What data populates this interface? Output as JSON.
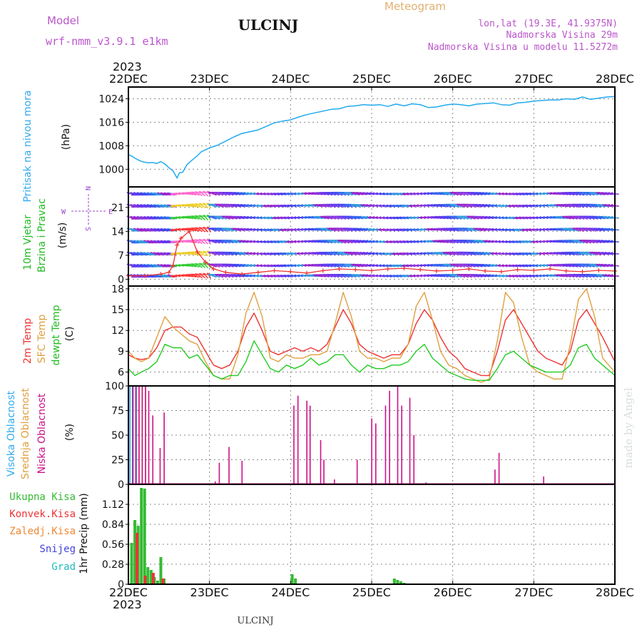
{
  "header": {
    "model_label": "Model",
    "model_name": "wrf-nmm_v3.9.1 e1km",
    "station": "ULCINJ",
    "product": "Meteogram",
    "coords": "lon,lat (19.3E, 41.9375N)",
    "elevation": "Nadmorska Visina 29m",
    "model_elevation": "Nadmorska Visina u modelu 11.5272m",
    "credit": "made by Angel",
    "footer_station": "ULCINJ"
  },
  "time_axis": {
    "year": "2023",
    "ticks": [
      "22DEC",
      "23DEC",
      "24DEC",
      "25DEC",
      "26DEC",
      "27DEC",
      "28DEC"
    ]
  },
  "colors": {
    "pressure": "#22aaee",
    "temp2m": "#ee3333",
    "sfc_temp": "#e0a040",
    "dewpoint": "#22cc22",
    "high_cloud": "#33aaee",
    "mid_cloud": "#e0a040",
    "low_cloud": "#cc1188",
    "total_precip": "#33bb33",
    "conv_precip": "#ee3333",
    "frozen_precip": "#ee8833",
    "snow": "#4444dd",
    "hail": "#22bbbb",
    "model_label": "#bb55cc",
    "product_label": "#e0b070"
  },
  "chart_data": [
    {
      "type": "line",
      "panel": "pressure",
      "ylabel": [
        "Pritisak na nivou mora",
        "(hPa)"
      ],
      "yticks": [
        1000,
        1008,
        1016,
        1024
      ],
      "ylim": [
        994,
        1028
      ],
      "x_days": [
        0.0,
        0.04,
        0.08,
        0.12,
        0.16,
        0.2,
        0.25,
        0.3,
        0.35,
        0.4,
        0.45,
        0.5,
        0.55,
        0.6,
        0.63,
        0.67,
        0.72,
        0.78,
        0.85,
        0.9,
        1.0,
        1.1,
        1.2,
        1.3,
        1.4,
        1.5,
        1.6,
        1.7,
        1.8,
        1.9,
        2.0,
        2.1,
        2.2,
        2.3,
        2.4,
        2.5,
        2.6,
        2.7,
        2.8,
        2.9,
        3.0,
        3.1,
        3.2,
        3.3,
        3.4,
        3.5,
        3.6,
        3.7,
        3.8,
        3.9,
        4.0,
        4.1,
        4.2,
        4.3,
        4.4,
        4.5,
        4.6,
        4.7,
        4.8,
        4.9,
        5.0,
        5.1,
        5.2,
        5.3,
        5.4,
        5.5,
        5.6,
        5.7,
        5.8,
        5.9,
        6.0
      ],
      "values": [
        1005,
        1004.5,
        1003.8,
        1003.2,
        1002.7,
        1002.4,
        1002.2,
        1002.3,
        1002.0,
        1002.6,
        1001.8,
        1000.5,
        999.5,
        997.0,
        998.8,
        999.0,
        1001.5,
        1003.0,
        1004.6,
        1006.0,
        1007.2,
        1008.2,
        1009.6,
        1011.0,
        1012.2,
        1012.8,
        1013.4,
        1014.6,
        1015.8,
        1016.4,
        1016.8,
        1017.8,
        1018.6,
        1019.2,
        1019.8,
        1020.4,
        1020.6,
        1021.4,
        1021.6,
        1022.0,
        1021.8,
        1022.0,
        1021.4,
        1022.2,
        1021.6,
        1022.3,
        1022.0,
        1021.0,
        1021.2,
        1021.8,
        1022.2,
        1022.0,
        1021.6,
        1022.2,
        1022.4,
        1022.6,
        1022.0,
        1021.8,
        1022.6,
        1022.8,
        1023.2,
        1023.4,
        1023.6,
        1023.6,
        1024.0,
        1023.8,
        1024.6,
        1023.8,
        1024.2,
        1024.6,
        1024.8
      ]
    },
    {
      "type": "vector",
      "panel": "wind",
      "ylabel": [
        "10m Vjetar",
        "Brzina i Pravac",
        "(m/s)"
      ],
      "compass": [
        "N",
        "E",
        "S",
        "W"
      ],
      "yticks": [
        0,
        7,
        14,
        21
      ],
      "ylim": [
        -2,
        27
      ],
      "speed_x_days": [
        0,
        0.2,
        0.4,
        0.5,
        0.55,
        0.6,
        0.65,
        0.75,
        0.85,
        0.95,
        1.05,
        1.2,
        1.4,
        1.6,
        1.8,
        2.0,
        2.2,
        2.4,
        2.6,
        2.8,
        3.0,
        3.2,
        3.4,
        3.6,
        3.8,
        4.0,
        4.2,
        4.4,
        4.6,
        4.8,
        5.0,
        5.2,
        5.4,
        5.6,
        5.8,
        6.0
      ],
      "speed_values": [
        1,
        1,
        1.5,
        2,
        4,
        10,
        12,
        14,
        8,
        5,
        3,
        2,
        1.5,
        2,
        2.5,
        2.2,
        1.8,
        2.5,
        3,
        2.8,
        2.5,
        3,
        3.2,
        2.8,
        2.4,
        2.6,
        3.0,
        2.4,
        2.2,
        2.8,
        2.6,
        3.0,
        2.4,
        2.2,
        2.6,
        2.4
      ]
    },
    {
      "type": "line",
      "panel": "temperature",
      "ylabel": [
        "2m Temp",
        "SFC Temp",
        "dewpt Temp",
        "(C)"
      ],
      "yticks": [
        6,
        9,
        12,
        15,
        18
      ],
      "ylim": [
        4,
        18.4
      ],
      "x_days": [
        0,
        0.08,
        0.16,
        0.25,
        0.35,
        0.45,
        0.55,
        0.65,
        0.75,
        0.85,
        0.95,
        1.05,
        1.15,
        1.25,
        1.35,
        1.45,
        1.55,
        1.65,
        1.75,
        1.85,
        1.95,
        2.05,
        2.15,
        2.25,
        2.35,
        2.45,
        2.55,
        2.65,
        2.75,
        2.85,
        2.95,
        3.05,
        3.15,
        3.25,
        3.35,
        3.45,
        3.55,
        3.65,
        3.75,
        3.85,
        3.95,
        4.05,
        4.15,
        4.25,
        4.35,
        4.45,
        4.55,
        4.65,
        4.75,
        4.85,
        4.95,
        5.05,
        5.15,
        5.25,
        5.35,
        5.45,
        5.55,
        5.65,
        5.75,
        5.85,
        6.0
      ],
      "series": [
        {
          "name": "2m Temp",
          "values": [
            8.5,
            8,
            7.8,
            8,
            9.5,
            12,
            12.5,
            12.5,
            11.5,
            11,
            9,
            7,
            6.5,
            7,
            9,
            12.5,
            14.5,
            12,
            9,
            8.5,
            9,
            9.5,
            9,
            9.5,
            9,
            10,
            12.5,
            15,
            13,
            10,
            9,
            8.5,
            8,
            8.5,
            8.5,
            10,
            13,
            15,
            13.5,
            11,
            9,
            8,
            6.5,
            6,
            5.5,
            5.5,
            9,
            13.5,
            15,
            13,
            11,
            9,
            8,
            7.5,
            7,
            9,
            13.5,
            15,
            13,
            11,
            7.5
          ]
        },
        {
          "name": "SFC Temp",
          "values": [
            9,
            8,
            7.5,
            8,
            11,
            14,
            12.5,
            11.5,
            10.5,
            10,
            7.5,
            5.5,
            5,
            5,
            8.5,
            14.5,
            17.5,
            14,
            8,
            7.5,
            8.5,
            8,
            8,
            8.5,
            8.5,
            9,
            13,
            17.5,
            14,
            9,
            8,
            8,
            7.5,
            8,
            8,
            10,
            15.5,
            17.5,
            13.5,
            9,
            7,
            6.5,
            5.5,
            5,
            4.5,
            5,
            10.5,
            17.5,
            16,
            11,
            7,
            6,
            5.5,
            5,
            5,
            10,
            16.5,
            18,
            14,
            8,
            6
          ]
        },
        {
          "name": "dewpt Temp",
          "values": [
            6.5,
            5.5,
            6,
            6.5,
            7.5,
            10,
            9.5,
            9.5,
            8,
            8.5,
            7,
            5.5,
            5,
            5.5,
            5.5,
            7.5,
            10.5,
            8.5,
            6.5,
            6,
            7,
            6.5,
            7,
            8,
            7,
            7.5,
            8.5,
            8.5,
            7,
            6,
            7,
            6.5,
            6.5,
            7,
            7,
            7.5,
            9,
            10,
            8,
            7,
            6,
            5.5,
            5,
            4.8,
            4.8,
            4.8,
            6.5,
            8.5,
            9,
            8,
            7,
            6.5,
            6,
            6,
            6,
            7,
            9.5,
            10,
            8,
            7,
            5.5
          ]
        }
      ]
    },
    {
      "type": "bar",
      "panel": "cloud",
      "ylabel": [
        "Visoka Oblacnost",
        "Srednja Oblacnost",
        "Niska Oblacnost",
        "(%)"
      ],
      "yticks": [
        0,
        25,
        50,
        75,
        100
      ],
      "ylim": [
        0,
        100
      ],
      "series": [
        {
          "name": "Visoka Oblacnost",
          "x_days": [
            0.02,
            0.06,
            0.1
          ],
          "values": [
            100,
            100,
            100
          ]
        },
        {
          "name": "Srednja Oblacnost",
          "x_days": [
            0.04,
            0.08,
            0.12,
            0.16,
            0.2
          ],
          "values": [
            100,
            100,
            100,
            100,
            100
          ]
        },
        {
          "name": "Niska Oblacnost",
          "x_days": [
            0.03,
            0.07,
            0.11,
            0.15,
            0.19,
            0.23,
            0.28,
            0.37,
            0.42,
            1.05,
            1.1,
            1.22,
            1.38,
            2.02,
            2.07,
            2.18,
            2.22,
            2.35,
            2.39,
            2.52,
            2.8,
            2.98,
            3.03,
            3.15,
            3.2,
            3.3,
            3.35,
            3.45,
            3.5,
            3.65,
            4.5,
            4.55,
            5.1
          ],
          "values": [
            100,
            100,
            100,
            100,
            100,
            95,
            70,
            37,
            73,
            3,
            22,
            38,
            24,
            80,
            90,
            85,
            80,
            45,
            25,
            5,
            25,
            67,
            62,
            80,
            95,
            100,
            80,
            88,
            50,
            2,
            15,
            32,
            8
          ]
        }
      ]
    },
    {
      "type": "bar",
      "panel": "precipitation",
      "ylabel": [
        "1hr Precip (mm)"
      ],
      "legend": [
        "Ukupna Kisa",
        "Konvek.Kisa",
        "Zaledj.Kisa",
        "Snijeg",
        "Grad"
      ],
      "yticks": [
        0,
        0.28,
        0.56,
        0.84,
        1.12
      ],
      "ylim": [
        0,
        1.4
      ],
      "series": [
        {
          "name": "Ukupna Kisa",
          "x_days": [
            0.04,
            0.08,
            0.12,
            0.16,
            0.2,
            0.24,
            0.28,
            0.32,
            0.36,
            0.4,
            0.44,
            2.02,
            2.06,
            3.28,
            3.32,
            3.36,
            3.4
          ],
          "values": [
            0.58,
            0.9,
            0.82,
            1.35,
            1.34,
            0.24,
            0.2,
            0.1,
            0.05,
            0.38,
            0.08,
            0.14,
            0.08,
            0.08,
            0.06,
            0.04,
            0.02
          ]
        },
        {
          "name": "Konvek.Kisa",
          "x_days": [
            0.08,
            0.18,
            0.28,
            0.4
          ],
          "values": [
            0.72,
            0.12,
            0.16,
            0.08
          ]
        }
      ]
    }
  ]
}
